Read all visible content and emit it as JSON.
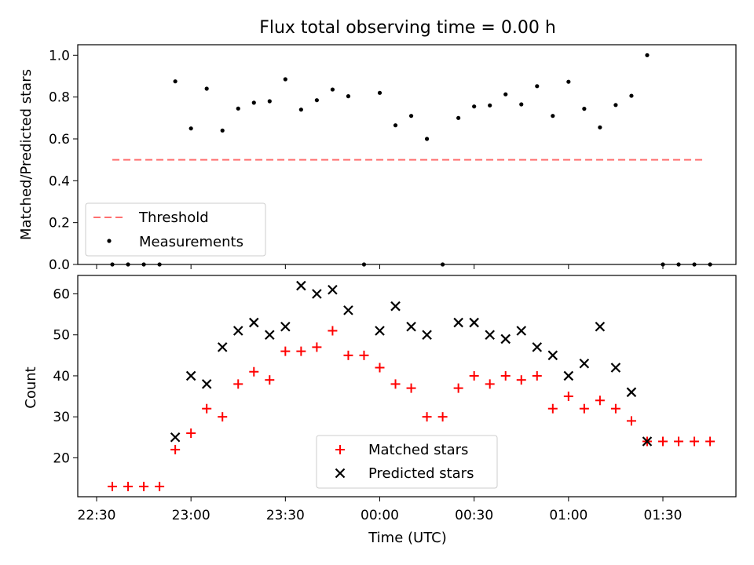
{
  "chart_data": [
    {
      "type": "scatter",
      "title": "Flux total observing time = 0.00 h",
      "xlabel": "",
      "ylabel": "Matched/Predicted stars",
      "ylim": [
        0,
        1.05
      ],
      "yticks": [
        "0.0",
        "0.2",
        "0.4",
        "0.6",
        "0.8",
        "1.0"
      ],
      "legend": {
        "placement": "lower-left",
        "entries": [
          "Threshold",
          "Measurements"
        ]
      },
      "threshold": {
        "name": "Threshold",
        "value": 0.5,
        "color": "#ff7070",
        "x_range": [
          "22:35",
          "01:43"
        ]
      },
      "measurements": {
        "name": "Measurements",
        "color": "#000000",
        "x": [
          "22:35",
          "22:40",
          "22:45",
          "22:50",
          "22:55",
          "23:00",
          "23:05",
          "23:10",
          "23:15",
          "23:20",
          "23:25",
          "23:30",
          "23:35",
          "23:40",
          "23:45",
          "23:50",
          "23:55",
          "24:00",
          "24:05",
          "24:10",
          "24:15",
          "24:20",
          "24:25",
          "24:30",
          "24:35",
          "24:40",
          "24:45",
          "24:50",
          "24:55",
          "25:00",
          "25:05",
          "25:10",
          "25:15",
          "25:20",
          "25:25",
          "25:30",
          "25:35",
          "25:40",
          "25:45"
        ],
        "y": [
          0.0,
          0.0,
          0.0,
          0.0,
          0.875,
          0.65,
          0.84,
          0.64,
          0.745,
          0.773,
          0.78,
          0.885,
          0.74,
          0.785,
          0.836,
          0.804,
          0.0,
          0.82,
          0.665,
          0.71,
          0.6,
          0.0,
          0.7,
          0.755,
          0.76,
          0.813,
          0.765,
          0.852,
          0.71,
          0.873,
          0.744,
          0.655,
          0.762,
          0.806,
          1.0,
          0.0,
          0.0,
          0.0,
          0.0
        ]
      }
    },
    {
      "type": "scatter",
      "title": "",
      "xlabel": "Time (UTC)",
      "ylabel": "Count",
      "ylim": [
        10.5,
        64.5
      ],
      "yticks": [
        "20",
        "30",
        "40",
        "50",
        "60"
      ],
      "xticks": [
        "22:30",
        "23:00",
        "23:30",
        "00:00",
        "00:30",
        "01:00",
        "01:30"
      ],
      "legend": {
        "placement": "lower-center",
        "entries": [
          "Matched stars",
          "Predicted stars"
        ]
      },
      "series": [
        {
          "name": "Matched stars",
          "marker": "+",
          "color": "#ff0000",
          "x": [
            "22:35",
            "22:40",
            "22:45",
            "22:50",
            "22:55",
            "23:00",
            "23:05",
            "23:10",
            "23:15",
            "23:20",
            "23:25",
            "23:30",
            "23:35",
            "23:40",
            "23:45",
            "23:50",
            "23:55",
            "24:00",
            "24:05",
            "24:10",
            "24:15",
            "24:20",
            "24:25",
            "24:30",
            "24:35",
            "24:40",
            "24:45",
            "24:50",
            "24:55",
            "25:00",
            "25:05",
            "25:10",
            "25:15",
            "25:20",
            "25:25",
            "25:30",
            "25:35",
            "25:40",
            "25:45"
          ],
          "y": [
            13,
            13,
            13,
            13,
            22,
            26,
            32,
            30,
            38,
            41,
            39,
            46,
            46,
            47,
            51,
            45,
            45,
            42,
            38,
            37,
            30,
            30,
            37,
            40,
            38,
            40,
            39,
            40,
            32,
            35,
            32,
            34,
            32,
            29,
            24,
            24,
            24,
            24,
            24
          ]
        },
        {
          "name": "Predicted stars",
          "marker": "x",
          "color": "#000000",
          "x": [
            "22:55",
            "23:00",
            "23:05",
            "23:10",
            "23:15",
            "23:20",
            "23:25",
            "23:30",
            "23:35",
            "23:40",
            "23:45",
            "23:50",
            "24:00",
            "24:05",
            "24:10",
            "24:15",
            "24:25",
            "24:30",
            "24:35",
            "24:40",
            "24:45",
            "24:50",
            "24:55",
            "25:00",
            "25:05",
            "25:10",
            "25:15",
            "25:20",
            "25:25"
          ],
          "y": [
            25,
            40,
            38,
            47,
            51,
            53,
            50,
            52,
            62,
            60,
            61,
            56,
            51,
            57,
            52,
            50,
            53,
            53,
            50,
            49,
            51,
            47,
            45,
            40,
            43,
            52,
            42,
            36,
            24
          ]
        }
      ]
    }
  ]
}
